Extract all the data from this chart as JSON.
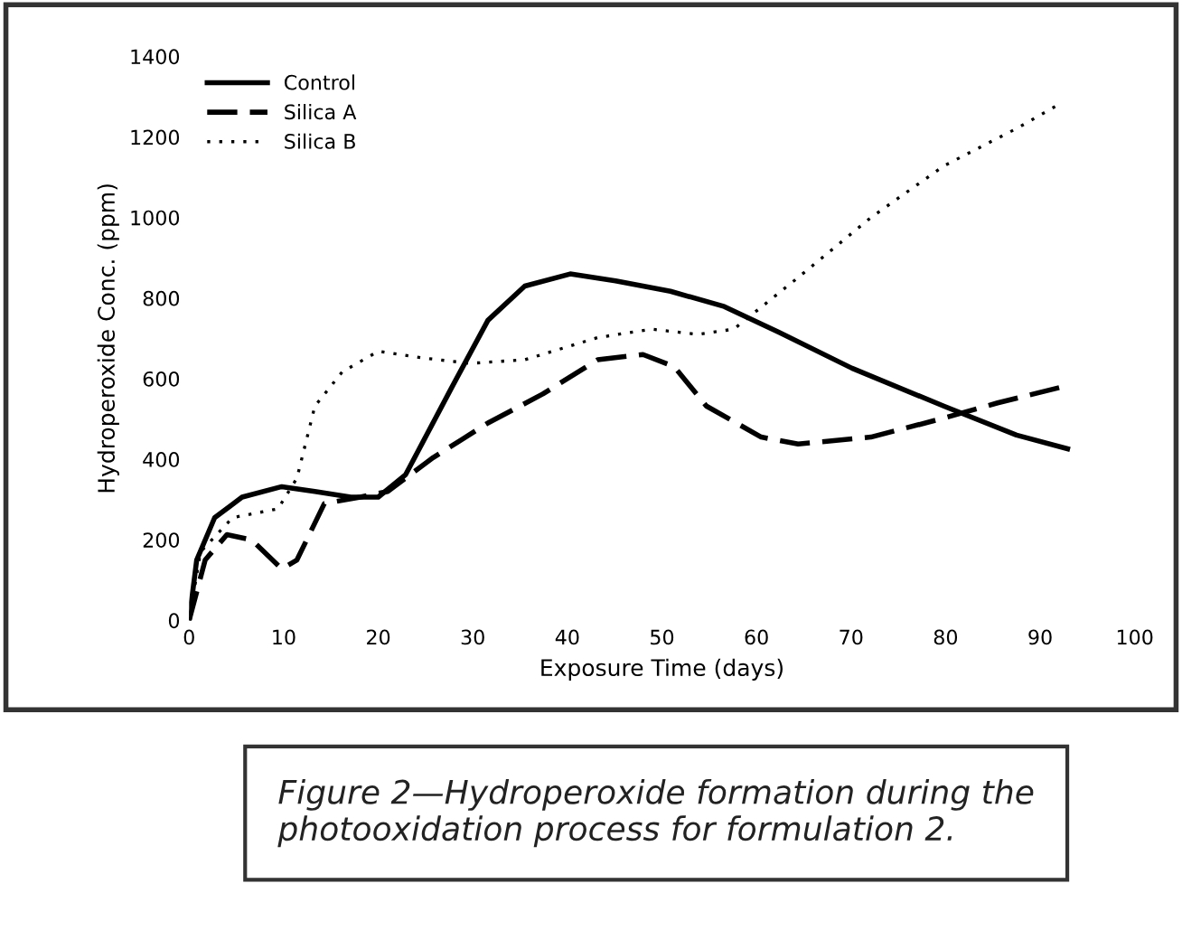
{
  "chart_data": {
    "type": "line",
    "xlabel": "Exposure Time (days)",
    "ylabel": "Hydroperoxide Conc. (ppm)",
    "xlim": [
      0,
      100
    ],
    "ylim": [
      0,
      1400
    ],
    "xticks": [
      0,
      10,
      20,
      30,
      40,
      50,
      60,
      70,
      80,
      90,
      100
    ],
    "yticks": [
      0,
      200,
      400,
      600,
      800,
      1000,
      1200,
      1400
    ],
    "grid": false,
    "legend": "top left",
    "marker": "none",
    "series": [
      {
        "name": "Control",
        "color": "#000000",
        "line_style": "solid",
        "x": [
          0,
          0.8,
          2.7,
          5.6,
          9.8,
          13.3,
          17.1,
          20,
          22.9,
          27.7,
          31.6,
          35.5,
          40.3,
          45.1,
          50.9,
          56.6,
          62.4,
          70.1,
          79.8,
          87.5,
          92.9
        ],
        "values": [
          0,
          150,
          255,
          306,
          332,
          320,
          306,
          306,
          362,
          575,
          745,
          830,
          860,
          843,
          817,
          779,
          715,
          626,
          532,
          460,
          426
        ]
      },
      {
        "name": "Silica A",
        "color": "#000000",
        "line_style": "dashed",
        "x": [
          0,
          1.7,
          4,
          6.6,
          9.8,
          11.4,
          14.3,
          18.1,
          21,
          25.8,
          31.6,
          37.4,
          43.2,
          48,
          51.3,
          54.7,
          60.5,
          64.4,
          72.1,
          79.8,
          85.5,
          92.9
        ],
        "values": [
          0,
          150,
          213,
          200,
          128,
          150,
          290,
          306,
          320,
          404,
          490,
          562,
          647,
          660,
          630,
          532,
          455,
          438,
          455,
          502,
          540,
          583
        ]
      },
      {
        "name": "Silica B",
        "color": "#000000",
        "line_style": "dotted",
        "x": [
          0,
          1.2,
          4.6,
          9.4,
          11.4,
          13.3,
          16.2,
          20,
          24.9,
          29.7,
          35.5,
          43.2,
          48.9,
          53.8,
          57.6,
          64.4,
          72.1,
          79.8,
          87.5,
          92.3
        ],
        "values": [
          0,
          170,
          255,
          277,
          353,
          532,
          617,
          668,
          651,
          638,
          647,
          702,
          723,
          710,
          723,
          851,
          1000,
          1128,
          1221,
          1285
        ]
      }
    ],
    "annotations": [
      "Figure 2—Hydroperoxide formation during the photooxidation process for formulation 2."
    ]
  }
}
